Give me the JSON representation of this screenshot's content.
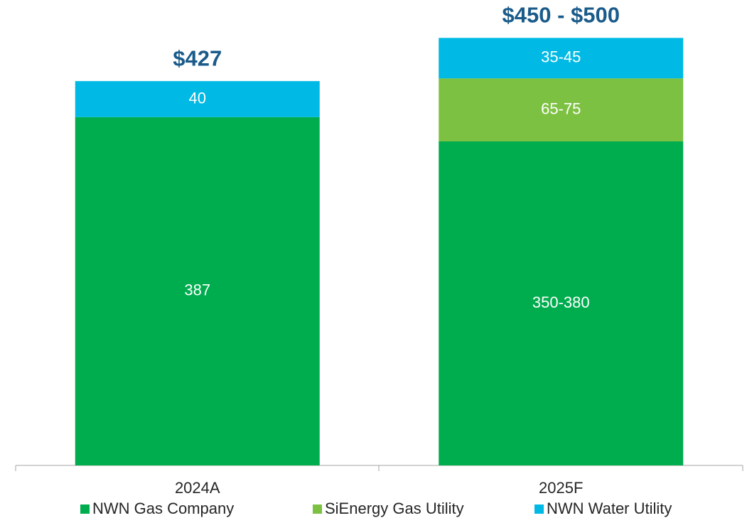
{
  "chart_data": {
    "type": "stacked_bar",
    "categories": [
      "2024A",
      "2025F"
    ],
    "series": [
      {
        "name": "NWN Gas Company",
        "color": "#00ad4e",
        "values": [
          387,
          360
        ],
        "value_labels": [
          "387",
          "350-380"
        ]
      },
      {
        "name": "SiEnergy Gas Utility",
        "color": "#7dc142",
        "values": [
          null,
          70
        ],
        "value_labels": [
          null,
          "65-75"
        ]
      },
      {
        "name": "NWN Water Utility",
        "color": "#00b9e4",
        "values": [
          40,
          45
        ],
        "value_labels": [
          "40",
          "35-45"
        ]
      }
    ],
    "total_labels": [
      "$427",
      "$450 - $500"
    ],
    "ylim": [
      0,
      480
    ]
  }
}
